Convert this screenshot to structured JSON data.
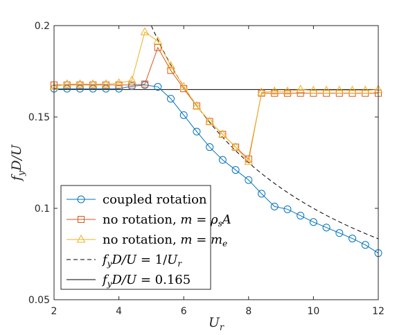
{
  "chart_data": {
    "type": "line",
    "title": "",
    "xlabel": "U_r",
    "ylabel": "f_y D/U",
    "xlim": [
      2,
      12
    ],
    "ylim": [
      0.05,
      0.2
    ],
    "xticks": [
      2,
      4,
      6,
      8,
      10,
      12
    ],
    "xtick_labels": [
      "2",
      "4",
      "6",
      "8",
      "10",
      "12"
    ],
    "yticks": [
      0.05,
      0.1,
      0.15,
      0.2
    ],
    "ytick_labels": [
      "0.05",
      "0.1",
      "0.15",
      "0.2"
    ],
    "grid": false,
    "legend_position": "bottom-left",
    "series": [
      {
        "name": "coupled rotation",
        "color": "#0072BD",
        "marker": "circle",
        "line_style": "solid",
        "x": [
          2.0,
          2.4,
          2.8,
          3.2,
          3.6,
          4.0,
          4.4,
          4.8,
          5.2,
          5.6,
          6.0,
          6.4,
          6.8,
          7.2,
          7.6,
          8.0,
          8.4,
          8.8,
          9.2,
          9.6,
          10.0,
          10.4,
          10.8,
          11.2,
          11.6,
          12.0
        ],
        "y": [
          0.1655,
          0.1655,
          0.1655,
          0.1655,
          0.1655,
          0.1655,
          0.1668,
          0.1675,
          0.1665,
          0.16,
          0.151,
          0.142,
          0.1335,
          0.1265,
          0.121,
          0.1155,
          0.108,
          0.101,
          0.0995,
          0.096,
          0.0925,
          0.0895,
          0.0865,
          0.0835,
          0.08,
          0.0755
        ]
      },
      {
        "name": "no rotation, m = ρ_s A",
        "color": "#D95319",
        "marker": "square",
        "line_style": "solid",
        "x": [
          2.0,
          2.4,
          2.8,
          3.2,
          3.6,
          4.0,
          4.4,
          4.8,
          5.2,
          5.6,
          6.0,
          6.4,
          6.8,
          7.2,
          7.6,
          8.0,
          8.4,
          8.8,
          9.2,
          9.6,
          10.0,
          10.4,
          10.8,
          11.2,
          11.6,
          12.0
        ],
        "y": [
          0.1675,
          0.1675,
          0.1675,
          0.1675,
          0.1675,
          0.1675,
          0.1675,
          0.168,
          0.188,
          0.1755,
          0.1655,
          0.156,
          0.1475,
          0.1405,
          0.1335,
          0.127,
          0.163,
          0.163,
          0.163,
          0.163,
          0.163,
          0.163,
          0.163,
          0.163,
          0.163,
          0.163
        ]
      },
      {
        "name": "no rotation, m = m_e",
        "color": "#EDB120",
        "marker": "triangle",
        "line_style": "solid",
        "x": [
          2.0,
          2.4,
          2.8,
          3.2,
          3.6,
          4.0,
          4.4,
          4.8,
          5.2,
          5.6,
          6.0,
          6.4,
          6.8,
          7.2,
          7.6,
          8.0,
          8.4,
          8.8,
          9.2,
          9.6,
          10.0,
          10.4,
          10.8,
          11.2,
          11.6,
          12.0
        ],
        "y": [
          0.1665,
          0.168,
          0.168,
          0.168,
          0.168,
          0.1685,
          0.17,
          0.1965,
          0.1915,
          0.178,
          0.1665,
          0.156,
          0.1475,
          0.1405,
          0.1335,
          0.1255,
          0.1635,
          0.164,
          0.164,
          0.165,
          0.1645,
          0.1645,
          0.1645,
          0.1645,
          0.1645,
          0.165
        ]
      },
      {
        "name": "f_y D/U = 1/U_r",
        "color": "#000000",
        "marker": "none",
        "line_style": "dashed",
        "function": "1/x",
        "x_range": [
          5.0,
          12.0
        ]
      },
      {
        "name": "f_y D/U = 0.165",
        "color": "#000000",
        "marker": "none",
        "line_style": "solid",
        "x": [
          2,
          12
        ],
        "y": [
          0.165,
          0.165
        ]
      }
    ]
  }
}
